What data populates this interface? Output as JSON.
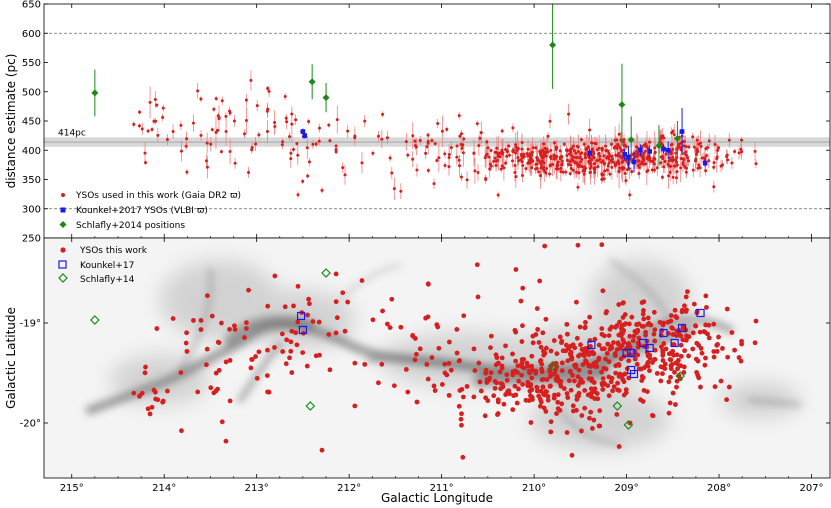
{
  "chart_data": [
    {
      "type": "scatter",
      "panel": "top",
      "ylabel": "distance estimate (pc)",
      "ylim": [
        250,
        650
      ],
      "xlim": [
        215.3,
        206.8
      ],
      "yticks": [
        250,
        300,
        350,
        400,
        450,
        500,
        550,
        600,
        650
      ],
      "reference_lines": [
        300,
        600
      ],
      "band": {
        "center": 414,
        "half_width": 8,
        "label": "414pc"
      },
      "legend": {
        "position": "bottom-left",
        "entries": [
          {
            "label": "YSOs used in this work (Gaia DR2 ϖ)",
            "marker": "circle",
            "color": "#d62020"
          },
          {
            "label": "Kounkel+2017 YSOs (VLBI ϖ)",
            "marker": "square",
            "color": "#1a1aee"
          },
          {
            "label": "Schlafly+2014 positions",
            "marker": "diamond",
            "color": "#1a8a1a"
          }
        ]
      },
      "schlafly_points": [
        {
          "l": 214.75,
          "d": 498,
          "err": 40
        },
        {
          "l": 212.4,
          "d": 517,
          "err": 30
        },
        {
          "l": 212.25,
          "d": 490,
          "err": 25
        },
        {
          "l": 209.8,
          "d": 580,
          "err": 75
        },
        {
          "l": 209.05,
          "d": 478,
          "err": 70
        },
        {
          "l": 208.95,
          "d": 418,
          "err": 40
        },
        {
          "l": 208.65,
          "d": 408,
          "err": 35
        },
        {
          "l": 208.45,
          "d": 420,
          "err": 30
        }
      ],
      "kounkel_points": [
        {
          "l": 212.5,
          "d": 432,
          "err": 5
        },
        {
          "l": 212.48,
          "d": 425,
          "err": 5
        },
        {
          "l": 209.4,
          "d": 395,
          "err": 8
        },
        {
          "l": 209.02,
          "d": 393,
          "err": 10
        },
        {
          "l": 208.98,
          "d": 388,
          "err": 20
        },
        {
          "l": 208.92,
          "d": 380,
          "err": 18
        },
        {
          "l": 208.85,
          "d": 400,
          "err": 10
        },
        {
          "l": 208.75,
          "d": 398,
          "err": 10
        },
        {
          "l": 208.6,
          "d": 402,
          "err": 8
        },
        {
          "l": 208.55,
          "d": 400,
          "err": 15
        },
        {
          "l": 208.4,
          "d": 432,
          "err": 40
        },
        {
          "l": 208.15,
          "d": 378,
          "err": 6
        }
      ]
    },
    {
      "type": "scatter",
      "panel": "bottom",
      "ylabel": "Galactic Latitude",
      "xlabel": "Galactic Longitude",
      "xlim": [
        215.3,
        206.8
      ],
      "ylim": [
        -20.55,
        -18.15
      ],
      "xticks": [
        {
          "value": 215,
          "label": "215°"
        },
        {
          "value": 214,
          "label": "214°"
        },
        {
          "value": 213,
          "label": "213°"
        },
        {
          "value": 212,
          "label": "212°"
        },
        {
          "value": 211,
          "label": "211°"
        },
        {
          "value": 210,
          "label": "210°"
        },
        {
          "value": 209,
          "label": "209°"
        },
        {
          "value": 208,
          "label": "208°"
        },
        {
          "value": 207,
          "label": "207°"
        }
      ],
      "yticks": [
        {
          "value": -19,
          "label": "-19°"
        },
        {
          "value": -20,
          "label": "-20°"
        }
      ],
      "legend": {
        "position": "top-left",
        "entries": [
          {
            "label": "YSOs this work",
            "marker": "circle",
            "color": "#d62020"
          },
          {
            "label": "Kounkel+17",
            "marker": "open-square",
            "color": "#1a1aee"
          },
          {
            "label": "Schlafly+14",
            "marker": "open-diamond",
            "color": "#1a8a1a"
          }
        ]
      },
      "schlafly_points": [
        {
          "l": 214.75,
          "b": -18.97
        },
        {
          "l": 212.25,
          "b": -18.5
        },
        {
          "l": 212.42,
          "b": -19.83
        },
        {
          "l": 209.8,
          "b": -19.43
        },
        {
          "l": 209.1,
          "b": -19.83
        },
        {
          "l": 208.98,
          "b": -20.02
        },
        {
          "l": 208.42,
          "b": -19.53
        }
      ],
      "kounkel_points": [
        {
          "l": 212.52,
          "b": -18.93
        },
        {
          "l": 212.5,
          "b": -19.07
        },
        {
          "l": 209.38,
          "b": -19.22
        },
        {
          "l": 209.0,
          "b": -19.3
        },
        {
          "l": 208.95,
          "b": -19.3
        },
        {
          "l": 208.95,
          "b": -19.47
        },
        {
          "l": 208.92,
          "b": -19.51
        },
        {
          "l": 208.82,
          "b": -19.2
        },
        {
          "l": 208.75,
          "b": -19.25
        },
        {
          "l": 208.6,
          "b": -19.1
        },
        {
          "l": 208.48,
          "b": -19.2
        },
        {
          "l": 208.4,
          "b": -19.05
        },
        {
          "l": 208.2,
          "b": -18.9
        }
      ]
    }
  ],
  "colors": {
    "yso": "#d62020",
    "kounkel": "#1a1aee",
    "schlafly": "#1a8a1a",
    "band": "#c8c8c8",
    "errbar": "#f08080"
  }
}
